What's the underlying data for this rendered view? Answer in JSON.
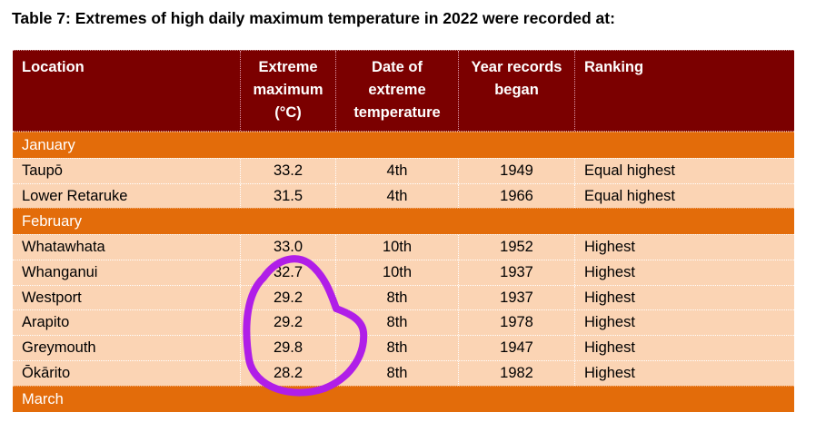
{
  "title": "Table 7: Extremes of high daily maximum temperature in 2022 were recorded at:",
  "header": {
    "location": "Location",
    "extreme_lines": [
      "Extreme",
      "maximum",
      "(°C)"
    ],
    "date_lines": [
      "Date of",
      "extreme",
      "temperature"
    ],
    "year_lines": [
      "Year records",
      "began"
    ],
    "ranking": "Ranking"
  },
  "groups": [
    {
      "month": "January",
      "rows": [
        {
          "location": "Taupō",
          "max": "33.2",
          "date": "4th",
          "year": "1949",
          "ranking": "Equal highest"
        },
        {
          "location": "Lower Retaruke",
          "max": "31.5",
          "date": "4th",
          "year": "1966",
          "ranking": "Equal highest"
        }
      ]
    },
    {
      "month": "February",
      "rows": [
        {
          "location": "Whatawhata",
          "max": "33.0",
          "date": "10th",
          "year": "1952",
          "ranking": "Highest"
        },
        {
          "location": "Whanganui",
          "max": "32.7",
          "date": "10th",
          "year": "1937",
          "ranking": "Highest"
        },
        {
          "location": "Westport",
          "max": "29.2",
          "date": "8th",
          "year": "1937",
          "ranking": "Highest"
        },
        {
          "location": "Arapito",
          "max": "29.2",
          "date": "8th",
          "year": "1978",
          "ranking": "Highest"
        },
        {
          "location": "Greymouth",
          "max": "29.8",
          "date": "8th",
          "year": "1947",
          "ranking": "Highest"
        },
        {
          "location": "Ōkārito",
          "max": "28.2",
          "date": "8th",
          "year": "1982",
          "ranking": "Highest"
        }
      ]
    },
    {
      "month": "March",
      "rows": []
    }
  ],
  "colors": {
    "header_bg": "#7b0000",
    "month_bg": "#e36c0a",
    "row_bg": "#fbd4b4",
    "annotation": "#b01ee8"
  }
}
